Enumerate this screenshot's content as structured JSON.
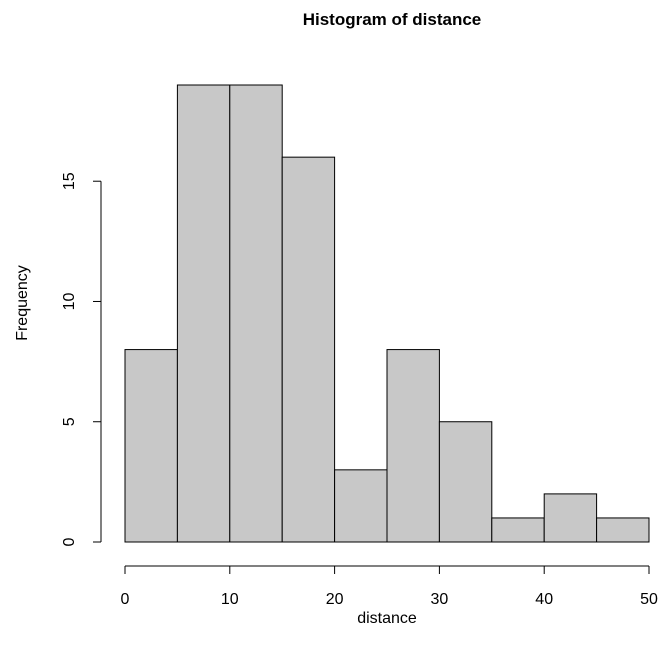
{
  "chart_data": {
    "type": "bar",
    "title": "Histogram of distance",
    "xlabel": "distance",
    "ylabel": "Frequency",
    "bins": [
      {
        "x0": 0,
        "x1": 5,
        "count": 8
      },
      {
        "x0": 5,
        "x1": 10,
        "count": 19
      },
      {
        "x0": 10,
        "x1": 15,
        "count": 19
      },
      {
        "x0": 15,
        "x1": 20,
        "count": 16
      },
      {
        "x0": 20,
        "x1": 25,
        "count": 3
      },
      {
        "x0": 25,
        "x1": 30,
        "count": 8
      },
      {
        "x0": 30,
        "x1": 35,
        "count": 5
      },
      {
        "x0": 35,
        "x1": 40,
        "count": 1
      },
      {
        "x0": 40,
        "x1": 45,
        "count": 2
      },
      {
        "x0": 45,
        "x1": 50,
        "count": 1
      }
    ],
    "xticks": [
      0,
      10,
      20,
      30,
      40,
      50
    ],
    "yticks": [
      0,
      5,
      10,
      15
    ],
    "xlim": [
      0,
      50
    ],
    "ylim": [
      0,
      19
    ],
    "grid": false,
    "colors": {
      "bar_fill": "#c8c8c8",
      "bar_stroke": "#000000"
    }
  }
}
